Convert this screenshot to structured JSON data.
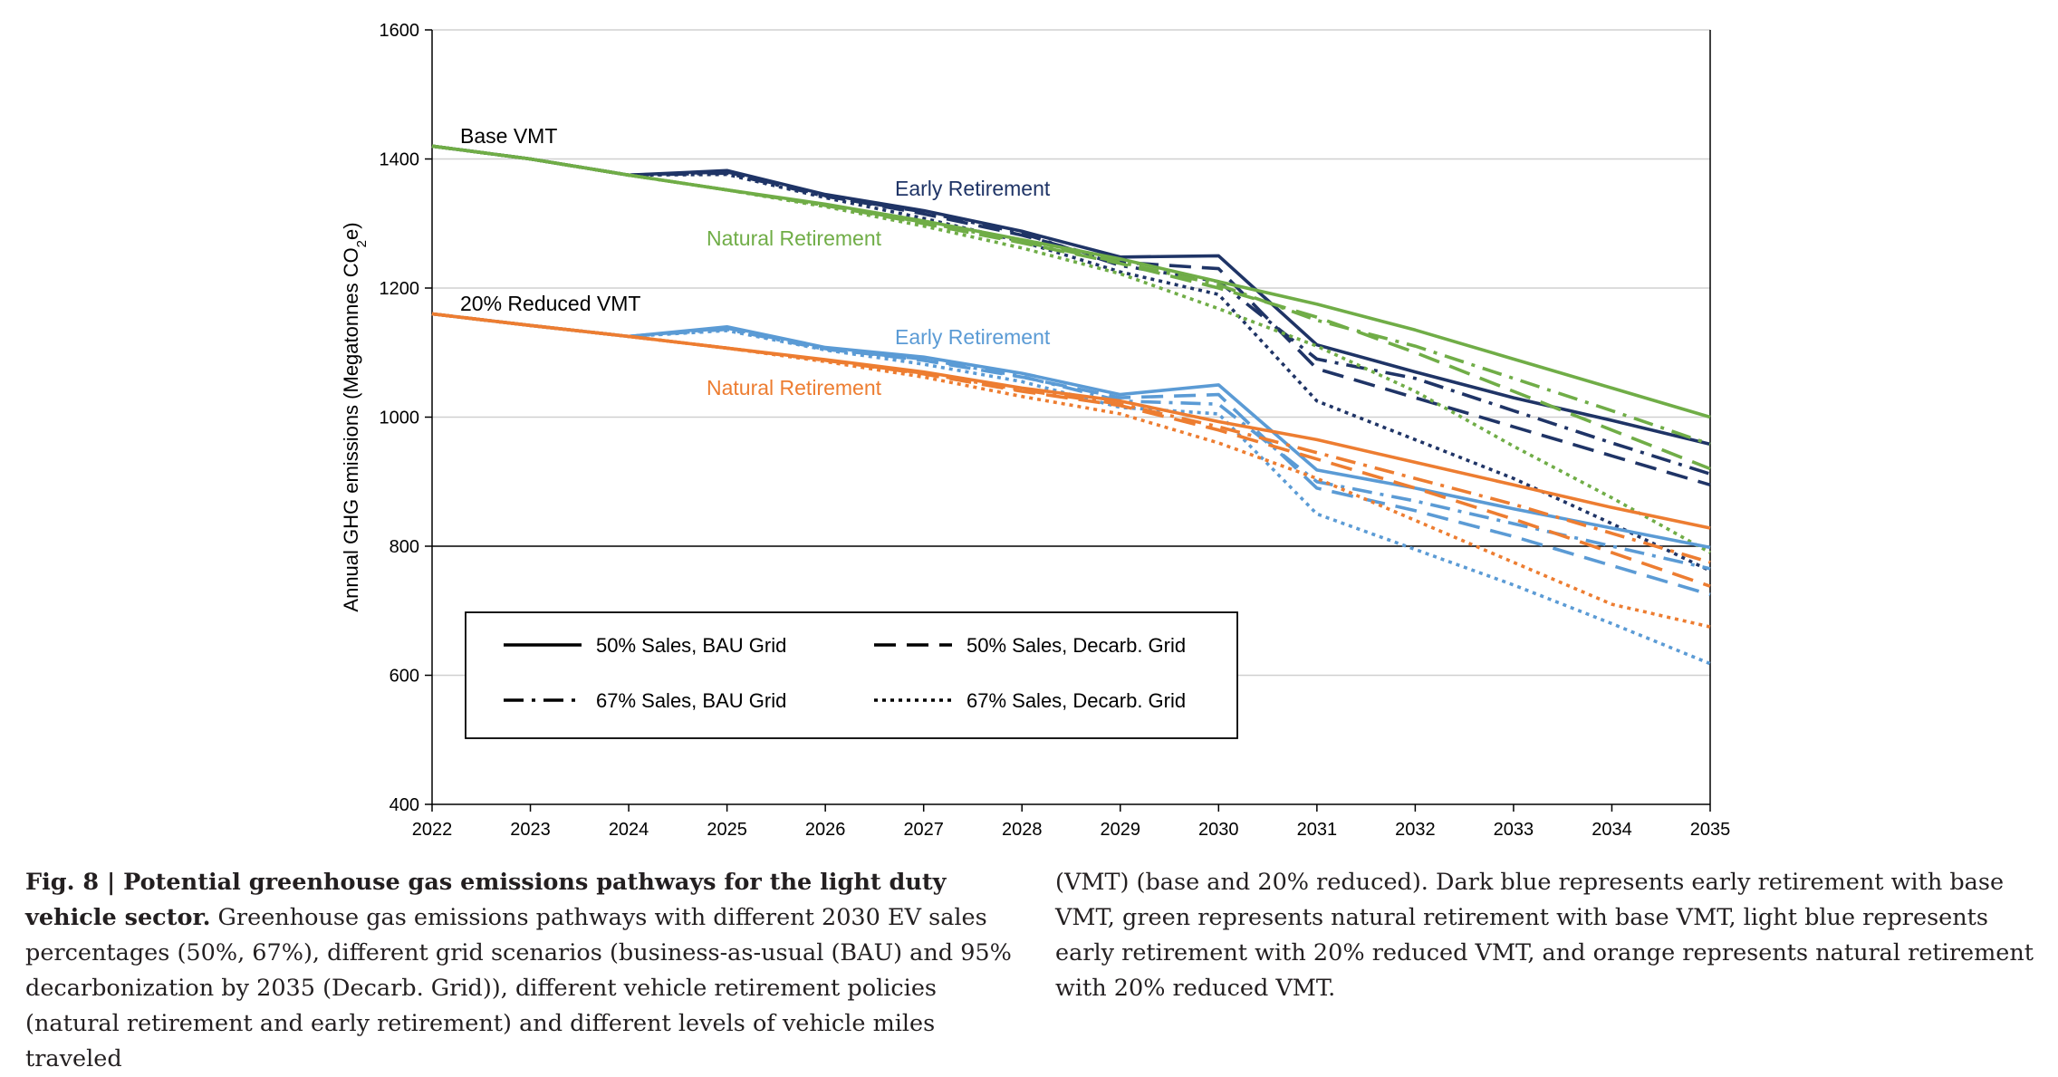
{
  "chart_data": {
    "type": "line",
    "ylabel": "Annual GHG emissions (Megatonnes CO2e)",
    "ylabel_parts": {
      "main": "Annual GHG emissions (Megatonnes CO",
      "sub": "2",
      "tail": "e)"
    },
    "ylim": [
      400,
      1600
    ],
    "yticks": [
      400,
      600,
      800,
      1000,
      1200,
      1400,
      1600
    ],
    "x": [
      2022,
      2023,
      2024,
      2025,
      2026,
      2027,
      2028,
      2029,
      2030,
      2031,
      2032,
      2033,
      2034,
      2035
    ],
    "grid": true,
    "colors": {
      "dark_blue": "#1f3466",
      "green": "#70ad47",
      "light_blue": "#5b9bd5",
      "orange": "#ed7d31",
      "black": "#000000"
    },
    "annotations": [
      {
        "text": "Base VMT",
        "color": "#000000"
      },
      {
        "text": "Early Retirement",
        "color": "#1f3466"
      },
      {
        "text": "Natural Retirement",
        "color": "#70ad47"
      },
      {
        "text": "20% Reduced VMT",
        "color": "#000000"
      },
      {
        "text": "Early Retirement",
        "color": "#5b9bd5"
      },
      {
        "text": "Natural Retirement",
        "color": "#ed7d31"
      }
    ],
    "legend": {
      "placement": "lower-left",
      "entries": [
        {
          "label": "50% Sales, BAU Grid",
          "style": "solid"
        },
        {
          "label": "50% Sales, Decarb. Grid",
          "style": "dash"
        },
        {
          "label": "67% Sales, BAU Grid",
          "style": "dashdot"
        },
        {
          "label": "67% Sales, Decarb. Grid",
          "style": "dot"
        }
      ]
    },
    "series": [
      {
        "group": "Base VMT, Early Retirement",
        "color": "dark_blue",
        "style": "solid",
        "values": [
          1420,
          1400,
          1375,
          1382,
          1345,
          1320,
          1288,
          1248,
          1250,
          1112,
          1070,
          1030,
          995,
          958
        ]
      },
      {
        "group": "Base VMT, Early Retirement",
        "color": "dark_blue",
        "style": "dash",
        "values": [
          1420,
          1400,
          1375,
          1380,
          1343,
          1315,
          1282,
          1240,
          1230,
          1075,
          1030,
          985,
          940,
          895
        ]
      },
      {
        "group": "Base VMT, Early Retirement",
        "color": "dark_blue",
        "style": "dashdot",
        "values": [
          1420,
          1400,
          1375,
          1378,
          1342,
          1318,
          1285,
          1235,
          1210,
          1090,
          1060,
          1010,
          960,
          912
        ]
      },
      {
        "group": "Base VMT, Early Retirement",
        "color": "dark_blue",
        "style": "dot",
        "values": [
          1420,
          1400,
          1375,
          1376,
          1340,
          1308,
          1272,
          1225,
          1190,
          1025,
          965,
          905,
          835,
          762
        ]
      },
      {
        "group": "Base VMT, Natural Retirement",
        "color": "green",
        "style": "solid",
        "values": [
          1420,
          1400,
          1375,
          1352,
          1330,
          1304,
          1275,
          1245,
          1210,
          1175,
          1135,
          1090,
          1045,
          1000
        ]
      },
      {
        "group": "Base VMT, Natural Retirement",
        "color": "green",
        "style": "dash",
        "values": [
          1420,
          1400,
          1375,
          1352,
          1328,
          1300,
          1270,
          1238,
          1200,
          1155,
          1100,
          1040,
          980,
          920
        ]
      },
      {
        "group": "Base VMT, Natural Retirement",
        "color": "green",
        "style": "dashdot",
        "values": [
          1420,
          1400,
          1375,
          1352,
          1328,
          1302,
          1272,
          1240,
          1205,
          1150,
          1110,
          1060,
          1010,
          958
        ]
      },
      {
        "group": "Base VMT, Natural Retirement",
        "color": "green",
        "style": "dot",
        "values": [
          1420,
          1400,
          1375,
          1352,
          1326,
          1296,
          1262,
          1222,
          1168,
          1110,
          1040,
          955,
          875,
          790
        ]
      },
      {
        "group": "20% Reduced VMT, Early Retirement",
        "color": "light_blue",
        "style": "solid",
        "values": [
          1160,
          1142,
          1125,
          1140,
          1108,
          1093,
          1068,
          1035,
          1050,
          918,
          890,
          858,
          828,
          798
        ]
      },
      {
        "group": "20% Reduced VMT, Early Retirement",
        "color": "light_blue",
        "style": "dash",
        "values": [
          1160,
          1142,
          1125,
          1138,
          1106,
          1088,
          1062,
          1030,
          1035,
          890,
          855,
          815,
          770,
          725
        ]
      },
      {
        "group": "20% Reduced VMT, Early Retirement",
        "color": "light_blue",
        "style": "dashdot",
        "values": [
          1160,
          1142,
          1125,
          1136,
          1105,
          1090,
          1063,
          1025,
          1020,
          900,
          870,
          835,
          800,
          765
        ]
      },
      {
        "group": "20% Reduced VMT, Early Retirement",
        "color": "light_blue",
        "style": "dot",
        "values": [
          1160,
          1142,
          1125,
          1134,
          1104,
          1082,
          1055,
          1015,
          1005,
          850,
          795,
          740,
          680,
          618
        ]
      },
      {
        "group": "20% Reduced VMT, Natural Retirement",
        "color": "orange",
        "style": "solid",
        "values": [
          1160,
          1142,
          1125,
          1107,
          1089,
          1070,
          1045,
          1025,
          993,
          965,
          930,
          895,
          860,
          828
        ]
      },
      {
        "group": "20% Reduced VMT, Natural Retirement",
        "color": "orange",
        "style": "dash",
        "values": [
          1160,
          1142,
          1125,
          1107,
          1088,
          1067,
          1040,
          1018,
          980,
          935,
          890,
          842,
          790,
          738
        ]
      },
      {
        "group": "20% Reduced VMT, Natural Retirement",
        "color": "orange",
        "style": "dashdot",
        "values": [
          1160,
          1142,
          1125,
          1107,
          1088,
          1068,
          1042,
          1020,
          985,
          945,
          905,
          865,
          820,
          775
        ]
      },
      {
        "group": "20% Reduced VMT, Natural Retirement",
        "color": "orange",
        "style": "dot",
        "values": [
          1160,
          1142,
          1125,
          1107,
          1086,
          1062,
          1032,
          1005,
          960,
          905,
          840,
          775,
          710,
          675
        ]
      }
    ]
  },
  "caption": {
    "fig_label": "Fig. 8 | Potential greenhouse gas emissions pathways for the light duty vehicle sector.",
    "left_text": " Greenhouse gas emissions pathways with different 2030 EV sales percentages (50%, 67%), different grid scenarios (business-as-usual (BAU) and 95% decarbonization by 2035 (Decarb. Grid)), different vehicle retirement policies (natural retirement and early retirement) and different levels of vehicle miles traveled",
    "right_text": "(VMT) (base and 20% reduced). Dark blue represents early retirement with base VMT, green represents natural retirement with base VMT, light blue represents early retirement with 20% reduced VMT, and orange represents natural retirement with 20% reduced VMT."
  }
}
